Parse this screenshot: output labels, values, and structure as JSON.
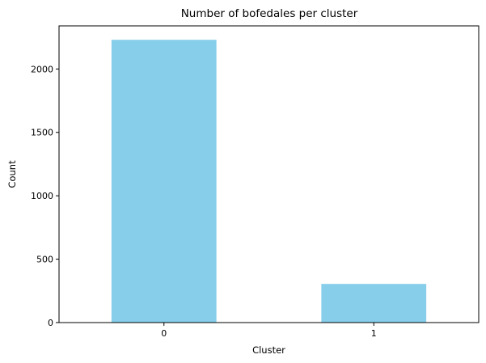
{
  "chart_data": {
    "type": "bar",
    "title": "Number of bofedales per cluster",
    "xlabel": "Cluster",
    "ylabel": "Count",
    "categories": [
      "0",
      "1"
    ],
    "values": [
      2230,
      305
    ],
    "ylim": [
      0,
      2340
    ],
    "yticks": [
      0,
      500,
      1000,
      1500,
      2000
    ],
    "bar_color": "#87ceeb",
    "grid": false,
    "legend": "none"
  }
}
